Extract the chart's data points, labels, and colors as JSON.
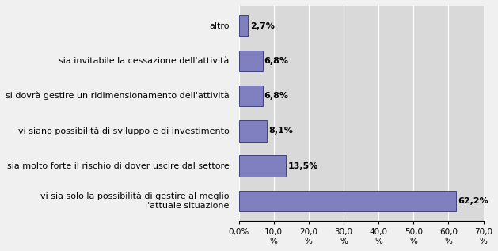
{
  "categories": [
    "vi sia solo la possibilità di gestire al meglio\nl'attuale situazione",
    "sia molto forte il rischio di dover uscire dal settore",
    "vi siano possibilità di sviluppo e di investimento",
    "si dovrà gestire un ridimensionamento dell'attività",
    "sia invitabile la cessazione dell'attività",
    "altro"
  ],
  "values": [
    62.2,
    13.5,
    8.1,
    6.8,
    6.8,
    2.7
  ],
  "labels": [
    "62,2%",
    "13,5%",
    "8,1%",
    "6,8%",
    "6,8%",
    "2,7%"
  ],
  "bar_color": "#8080c0",
  "fig_bg_color": "#f0f0f0",
  "plot_bg_color": "#d9d9d9",
  "xlim": [
    0,
    70
  ],
  "xticks": [
    0,
    10,
    20,
    30,
    40,
    50,
    60,
    70
  ],
  "xtick_labels": [
    "0,0%",
    "10,0\n%",
    "20,0\n%",
    "30,0\n%",
    "40,0\n%",
    "50,0\n%",
    "60,0\n%",
    "70,0\n%"
  ],
  "label_fontsize": 8,
  "tick_fontsize": 7.5,
  "bar_label_fontsize": 8
}
